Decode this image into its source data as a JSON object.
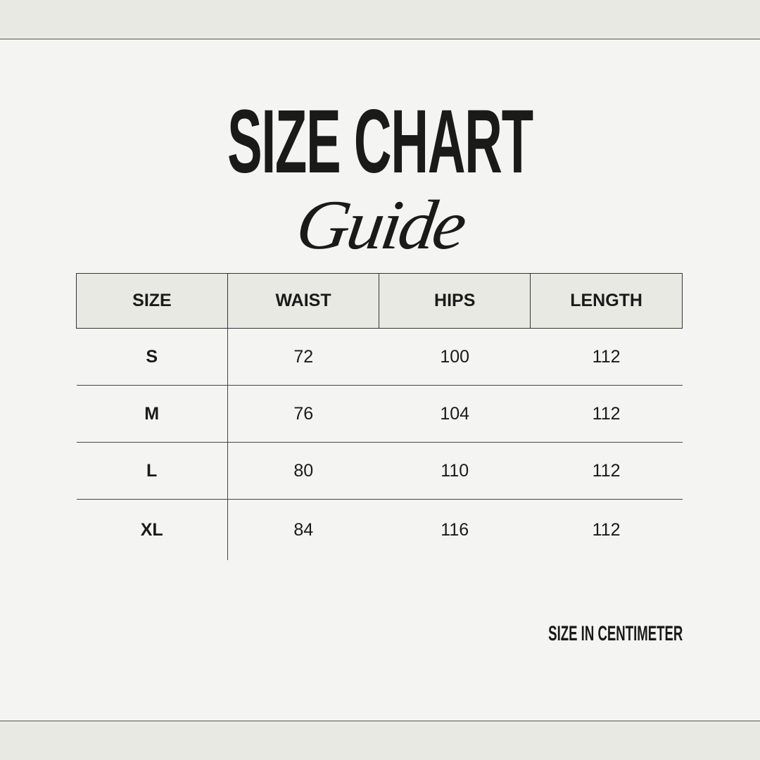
{
  "title": "SIZE CHART",
  "subtitle": "Guide",
  "table": {
    "headers": [
      "SIZE",
      "WAIST",
      "HIPS",
      "LENGTH"
    ],
    "rows": [
      [
        "S",
        "72",
        "100",
        "112"
      ],
      [
        "M",
        "76",
        "104",
        "112"
      ],
      [
        "L",
        "80",
        "110",
        "112"
      ],
      [
        "XL",
        "84",
        "116",
        "112"
      ]
    ]
  },
  "note": "SIZE IN CENTIMETER",
  "colors": {
    "background": "#f4f4f2",
    "header_fill": "#e9e9e4",
    "text": "#1a1a18"
  }
}
